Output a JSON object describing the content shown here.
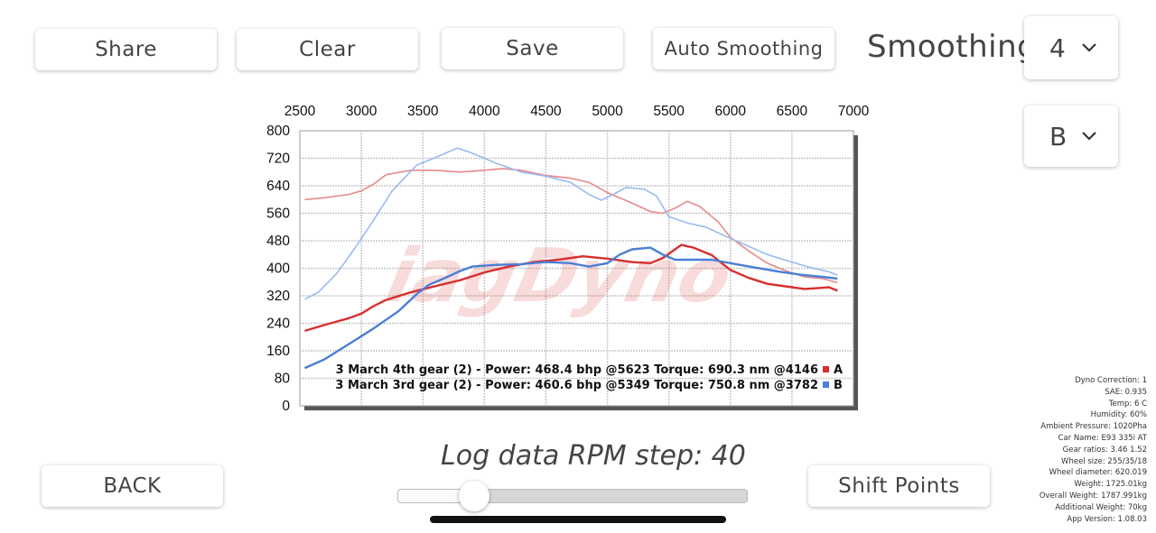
{
  "toolbar": {
    "share": "Share",
    "clear": "Clear",
    "save": "Save",
    "auto_smoothing": "Auto Smoothing",
    "smoothing_label": "Smoothing:",
    "smoothing_value": "4",
    "run_value": "B"
  },
  "footer": {
    "back": "BACK",
    "shift_points": "Shift Points",
    "step_label": "Log data RPM step: 40",
    "slider_level": 0.22
  },
  "info": [
    "Dyno Correction: 1",
    "SAE: 0.935",
    "Temp: 6 C",
    "Humidity: 60%",
    "Ambient Pressure: 1020Pha",
    "Car Name: E93 335i AT",
    "Gear ratios: 3.46 1.52",
    "Wheel size: 255/35/18",
    "Wheel diameter: 620.019",
    "Weight: 1725.01kg",
    "Overall Weight: 1787.991kg",
    "Additional Weight: 70kg",
    "App Version: 1.08.03"
  ],
  "chart_data": {
    "type": "line",
    "xlim": [
      2500,
      7000
    ],
    "ylim": [
      0,
      800
    ],
    "x_ticks": [
      "2500",
      "3000",
      "3500",
      "4000",
      "4500",
      "5000",
      "5500",
      "6000",
      "6500",
      "7000"
    ],
    "y_ticks": [
      "800",
      "720",
      "640",
      "560",
      "480",
      "400",
      "320",
      "240",
      "160",
      "80",
      "0"
    ],
    "grid": true,
    "legend_position": "bottom-right",
    "legend": [
      {
        "text": "3 March 4th gear (2) - Power: 468.4 bhp @5623 Torque: 690.3 nm @4146",
        "key": "A",
        "color": "#d63030"
      },
      {
        "text": "3 March 3rd gear (2) - Power: 460.6 bhp @5349 Torque: 750.8 nm @3782",
        "key": "B",
        "color": "#4a7fd6"
      }
    ],
    "watermark": "iagDyno",
    "series": [
      {
        "name": "A",
        "kind": "power",
        "color": "#d63030",
        "points": [
          [
            2540,
            218
          ],
          [
            2700,
            235
          ],
          [
            2900,
            255
          ],
          [
            3000,
            268
          ],
          [
            3100,
            290
          ],
          [
            3200,
            308
          ],
          [
            3400,
            330
          ],
          [
            3600,
            348
          ],
          [
            3800,
            365
          ],
          [
            4000,
            388
          ],
          [
            4200,
            405
          ],
          [
            4400,
            418
          ],
          [
            4600,
            425
          ],
          [
            4800,
            435
          ],
          [
            5000,
            428
          ],
          [
            5200,
            418
          ],
          [
            5350,
            415
          ],
          [
            5450,
            430
          ],
          [
            5600,
            468
          ],
          [
            5700,
            460
          ],
          [
            5850,
            438
          ],
          [
            6000,
            395
          ],
          [
            6150,
            372
          ],
          [
            6300,
            355
          ],
          [
            6500,
            345
          ],
          [
            6600,
            340
          ],
          [
            6700,
            342
          ],
          [
            6800,
            345
          ],
          [
            6870,
            335
          ]
        ]
      },
      {
        "name": "A",
        "kind": "torque",
        "color": "#e88a8a",
        "points": [
          [
            2540,
            600
          ],
          [
            2700,
            605
          ],
          [
            2900,
            615
          ],
          [
            3000,
            625
          ],
          [
            3100,
            645
          ],
          [
            3200,
            672
          ],
          [
            3400,
            685
          ],
          [
            3600,
            685
          ],
          [
            3800,
            680
          ],
          [
            4000,
            685
          ],
          [
            4150,
            690
          ],
          [
            4300,
            685
          ],
          [
            4500,
            670
          ],
          [
            4700,
            662
          ],
          [
            4850,
            650
          ],
          [
            5000,
            620
          ],
          [
            5200,
            590
          ],
          [
            5350,
            565
          ],
          [
            5450,
            560
          ],
          [
            5550,
            575
          ],
          [
            5650,
            595
          ],
          [
            5750,
            580
          ],
          [
            5900,
            535
          ],
          [
            6000,
            490
          ],
          [
            6150,
            450
          ],
          [
            6300,
            415
          ],
          [
            6450,
            393
          ],
          [
            6600,
            375
          ],
          [
            6750,
            370
          ],
          [
            6870,
            358
          ]
        ]
      },
      {
        "name": "B",
        "kind": "power",
        "color": "#4a7fd6",
        "points": [
          [
            2540,
            110
          ],
          [
            2700,
            135
          ],
          [
            2900,
            180
          ],
          [
            3100,
            225
          ],
          [
            3300,
            275
          ],
          [
            3450,
            325
          ],
          [
            3550,
            352
          ],
          [
            3700,
            375
          ],
          [
            3800,
            392
          ],
          [
            3900,
            405
          ],
          [
            4100,
            410
          ],
          [
            4300,
            412
          ],
          [
            4500,
            418
          ],
          [
            4700,
            415
          ],
          [
            4850,
            405
          ],
          [
            5000,
            415
          ],
          [
            5100,
            440
          ],
          [
            5200,
            455
          ],
          [
            5349,
            460
          ],
          [
            5450,
            440
          ],
          [
            5550,
            425
          ],
          [
            5700,
            425
          ],
          [
            5850,
            425
          ],
          [
            6000,
            415
          ],
          [
            6200,
            402
          ],
          [
            6400,
            390
          ],
          [
            6600,
            380
          ],
          [
            6750,
            375
          ],
          [
            6870,
            370
          ]
        ]
      },
      {
        "name": "B",
        "kind": "torque",
        "color": "#9abbef",
        "points": [
          [
            2540,
            310
          ],
          [
            2650,
            330
          ],
          [
            2800,
            385
          ],
          [
            2950,
            460
          ],
          [
            3100,
            540
          ],
          [
            3250,
            625
          ],
          [
            3450,
            700
          ],
          [
            3600,
            722
          ],
          [
            3782,
            750
          ],
          [
            3900,
            735
          ],
          [
            4100,
            705
          ],
          [
            4300,
            680
          ],
          [
            4500,
            668
          ],
          [
            4700,
            650
          ],
          [
            4850,
            615
          ],
          [
            4950,
            598
          ],
          [
            5050,
            615
          ],
          [
            5150,
            635
          ],
          [
            5300,
            630
          ],
          [
            5400,
            610
          ],
          [
            5500,
            550
          ],
          [
            5650,
            532
          ],
          [
            5800,
            520
          ],
          [
            5950,
            495
          ],
          [
            6100,
            472
          ],
          [
            6300,
            440
          ],
          [
            6500,
            418
          ],
          [
            6650,
            402
          ],
          [
            6800,
            390
          ],
          [
            6870,
            380
          ]
        ]
      }
    ]
  }
}
